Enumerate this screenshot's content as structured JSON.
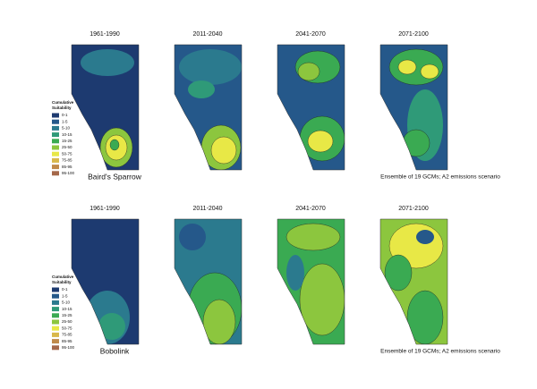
{
  "panels": [
    {
      "species": "Baird's Sparrow",
      "periods": [
        "1961-1990",
        "2011-2040",
        "2041-2070",
        "2071-2100"
      ],
      "legend_title": [
        "Cumulative",
        "Suitability"
      ],
      "legend_items": [
        {
          "label": "0-1",
          "color": "#1d3a70"
        },
        {
          "label": "1-5",
          "color": "#25588a"
        },
        {
          "label": "5-10",
          "color": "#2b7a8e"
        },
        {
          "label": "10-15",
          "color": "#2f9a78"
        },
        {
          "label": "15-25",
          "color": "#3aaa52"
        },
        {
          "label": "25-50",
          "color": "#8cc63e"
        },
        {
          "label": "50-75",
          "color": "#e8e846"
        },
        {
          "label": "75-85",
          "color": "#d9b84b"
        },
        {
          "label": "85-95",
          "color": "#c08a4a"
        },
        {
          "label": "95-100",
          "color": "#a5684a"
        }
      ],
      "caption": "Ensemble of 19 GCMs; A2 emissions scenario"
    },
    {
      "species": "Bobolink",
      "periods": [
        "1961-1990",
        "2011-2040",
        "2041-2070",
        "2071-2100"
      ],
      "legend_title": [
        "Cumulative",
        "Suitability"
      ],
      "legend_items": [
        {
          "label": "0-1",
          "color": "#1d3a70"
        },
        {
          "label": "1-5",
          "color": "#25588a"
        },
        {
          "label": "5-10",
          "color": "#2b7a8e"
        },
        {
          "label": "10-15",
          "color": "#2f9a78"
        },
        {
          "label": "15-25",
          "color": "#3aaa52"
        },
        {
          "label": "25-50",
          "color": "#8cc63e"
        },
        {
          "label": "50-75",
          "color": "#e8e846"
        },
        {
          "label": "75-85",
          "color": "#d9b84b"
        },
        {
          "label": "85-95",
          "color": "#c08a4a"
        },
        {
          "label": "95-100",
          "color": "#a5684a"
        }
      ],
      "caption": "Ensemble of 19 GCMs; A2 emissions scenario"
    }
  ]
}
